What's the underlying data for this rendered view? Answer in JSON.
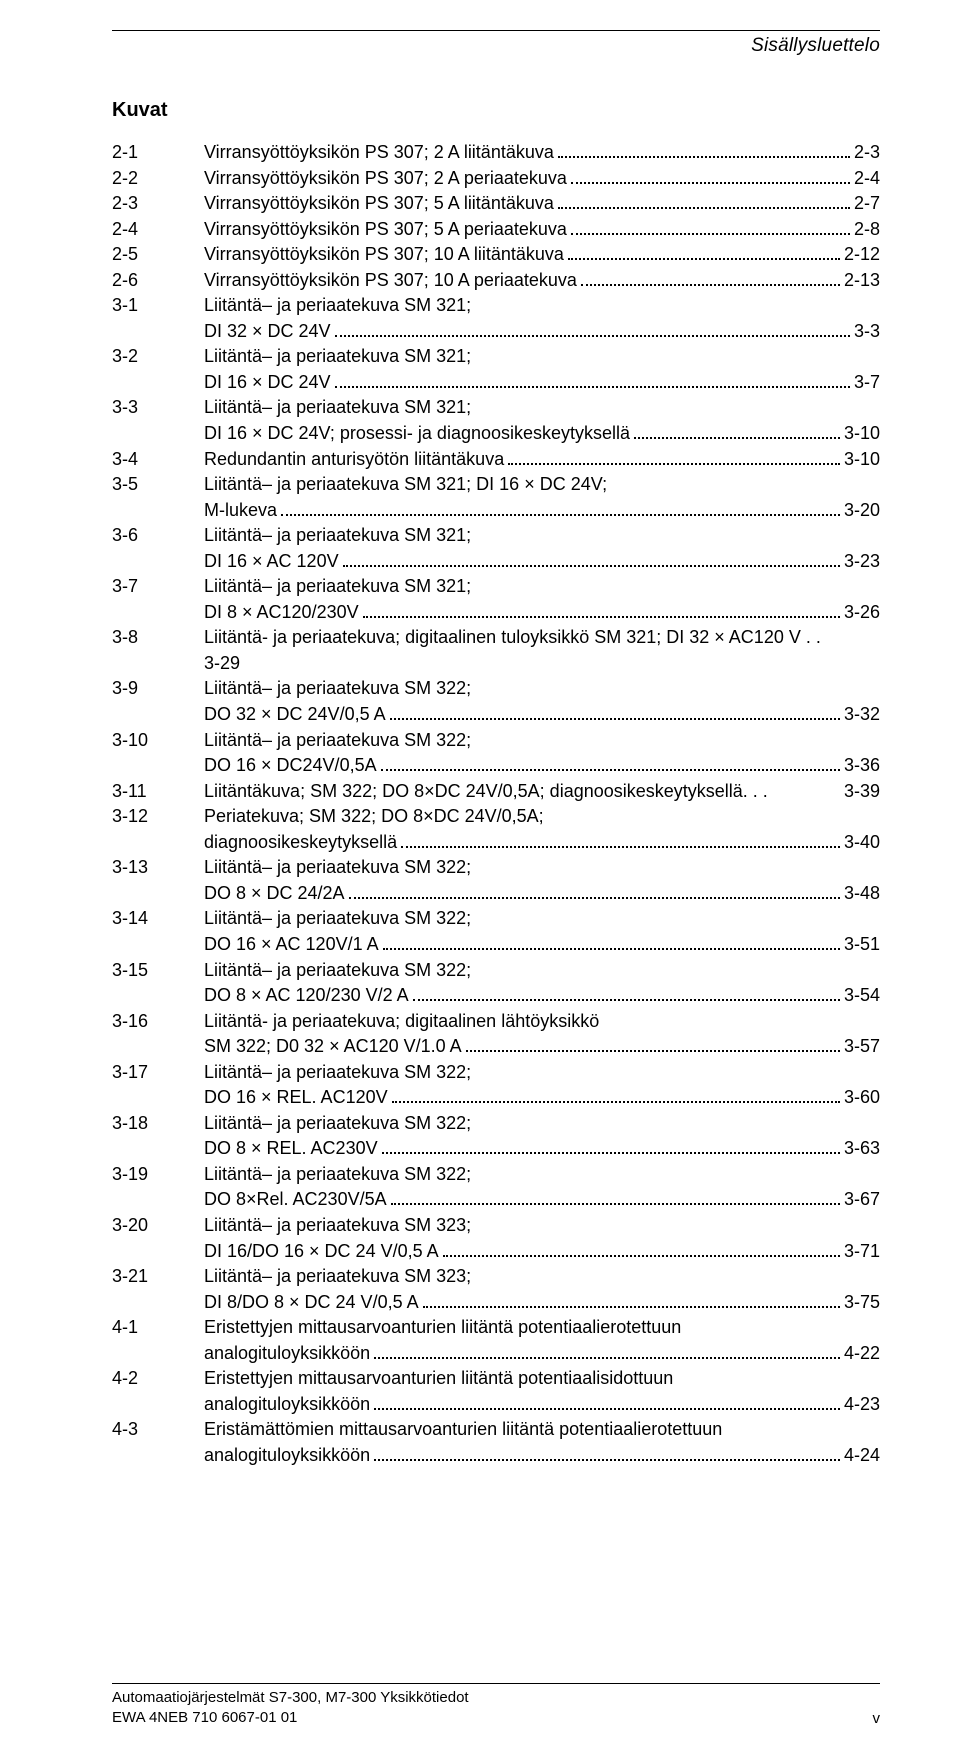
{
  "header": {
    "title": "Sisällysluettelo"
  },
  "section": {
    "heading": "Kuvat"
  },
  "entries": [
    {
      "num": "2-1",
      "lines": [
        "Virransyöttöyksikön PS 307; 2 A liitäntäkuva"
      ],
      "page": "2-3"
    },
    {
      "num": "2-2",
      "lines": [
        "Virransyöttöyksikön PS 307; 2 A periaatekuva"
      ],
      "page": "2-4"
    },
    {
      "num": "2-3",
      "lines": [
        "Virransyöttöyksikön PS 307; 5 A liitäntäkuva"
      ],
      "page": "2-7"
    },
    {
      "num": "2-4",
      "lines": [
        "Virransyöttöyksikön PS 307; 5 A periaatekuva"
      ],
      "page": "2-8"
    },
    {
      "num": "2-5",
      "lines": [
        "Virransyöttöyksikön PS 307; 10 A liitäntäkuva"
      ],
      "page": "2-12"
    },
    {
      "num": "2-6",
      "lines": [
        "Virransyöttöyksikön PS 307; 10 A periaatekuva"
      ],
      "page": "2-13"
    },
    {
      "num": "3-1",
      "lines": [
        "Liitäntä– ja periaatekuva SM 321;",
        "DI 32 × DC 24V"
      ],
      "page": "3-3"
    },
    {
      "num": "3-2",
      "lines": [
        "Liitäntä– ja periaatekuva SM 321;",
        "DI 16 × DC 24V"
      ],
      "page": "3-7"
    },
    {
      "num": "3-3",
      "lines": [
        "Liitäntä– ja periaatekuva SM 321;",
        "DI 16 × DC 24V; prosessi- ja diagnoosikeskeytyksellä"
      ],
      "page": "3-10"
    },
    {
      "num": "3-4",
      "lines": [
        "Redundantin anturisyötön liitäntäkuva"
      ],
      "page": "3-10"
    },
    {
      "num": "3-5",
      "lines": [
        "Liitäntä– ja periaatekuva SM 321; DI 16 × DC 24V;",
        "M-lukeva"
      ],
      "page": "3-20"
    },
    {
      "num": "3-6",
      "lines": [
        "Liitäntä– ja periaatekuva SM 321;",
        "DI 16 × AC 120V"
      ],
      "page": "3-23"
    },
    {
      "num": "3-7",
      "lines": [
        "Liitäntä– ja periaatekuva SM 321;",
        "DI 8 × AC120/230V"
      ],
      "page": "3-26"
    },
    {
      "num": "3-8",
      "lines": [
        "Liitäntä- ja periaatekuva; digitaalinen tuloyksikkö SM 321; DI 32 × AC120 V",
        "3-29"
      ],
      "page": "",
      "trailing": ". .",
      "noLeaderLast": true
    },
    {
      "num": "3-9",
      "lines": [
        "Liitäntä– ja periaatekuva SM 322;",
        "DO 32 × DC 24V/0,5 A"
      ],
      "page": "3-32"
    },
    {
      "num": "3-10",
      "lines": [
        "Liitäntä– ja periaatekuva SM 322;",
        "DO 16 × DC24V/0,5A"
      ],
      "page": "3-36"
    },
    {
      "num": "3-11",
      "lines": [
        "Liitäntäkuva; SM 322; DO 8×DC 24V/0,5A; diagnoosikeskeytyksellä"
      ],
      "page": "3-39",
      "shortLeader": " . . . "
    },
    {
      "num": "3-12",
      "lines": [
        "Periatekuva; SM 322; DO 8×DC 24V/0,5A;",
        "diagnoosikeskeytyksellä"
      ],
      "page": "3-40"
    },
    {
      "num": "3-13",
      "lines": [
        "Liitäntä– ja periaatekuva SM 322;",
        "DO 8 × DC 24/2A"
      ],
      "page": "3-48"
    },
    {
      "num": "3-14",
      "lines": [
        "Liitäntä– ja periaatekuva SM 322;",
        "DO 16 × AC 120V/1 A"
      ],
      "page": "3-51"
    },
    {
      "num": "3-15",
      "lines": [
        "Liitäntä– ja periaatekuva SM 322;",
        "DO 8 × AC 120/230 V/2 A"
      ],
      "page": "3-54"
    },
    {
      "num": "3-16",
      "lines": [
        "Liitäntä- ja periaatekuva; digitaalinen lähtöyksikkö",
        "SM 322; D0 32 × AC120 V/1.0 A"
      ],
      "page": "3-57"
    },
    {
      "num": "3-17",
      "lines": [
        "Liitäntä– ja periaatekuva SM 322;",
        "DO 16 × REL. AC120V"
      ],
      "page": "3-60"
    },
    {
      "num": "3-18",
      "lines": [
        "Liitäntä– ja periaatekuva SM 322;",
        "DO 8 × REL. AC230V"
      ],
      "page": "3-63"
    },
    {
      "num": "3-19",
      "lines": [
        "Liitäntä– ja periaatekuva SM 322;",
        "DO 8×Rel. AC230V/5A"
      ],
      "page": "3-67"
    },
    {
      "num": "3-20",
      "lines": [
        "Liitäntä– ja periaatekuva SM 323;",
        "DI 16/DO 16 × DC 24 V/0,5 A"
      ],
      "page": "3-71"
    },
    {
      "num": "3-21",
      "lines": [
        "Liitäntä– ja periaatekuva SM 323;",
        "DI 8/DO 8 × DC 24 V/0,5 A"
      ],
      "page": "3-75"
    },
    {
      "num": "4-1",
      "lines": [
        "Eristettyjen mittausarvoanturien liitäntä potentiaalierotettuun",
        "analogituloyksikköön"
      ],
      "page": "4-22"
    },
    {
      "num": "4-2",
      "lines": [
        "Eristettyjen mittausarvoanturien liitäntä potentiaalisidottuun",
        "analogituloyksikköön"
      ],
      "page": "4-23"
    },
    {
      "num": "4-3",
      "lines": [
        "Eristämättömien mittausarvoanturien liitäntä potentiaalierotettuun",
        "analogituloyksikköön"
      ],
      "page": "4-24"
    }
  ],
  "footer": {
    "left1": "Automaatiojärjestelmät S7-300, M7-300 Yksikkötiedot",
    "left2": "EWA 4NEB 710 6067-01 01",
    "right": "v"
  }
}
